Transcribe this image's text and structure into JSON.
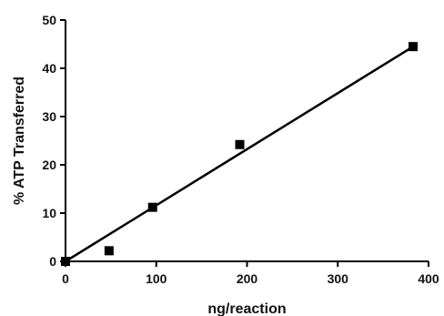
{
  "chart_data": {
    "type": "scatter",
    "title": "",
    "xlabel": "ng/reaction",
    "ylabel": "% ATP Transferred",
    "xlim": [
      0,
      400
    ],
    "ylim": [
      0,
      50
    ],
    "xticks": [
      "0",
      "100",
      "200",
      "300",
      "400"
    ],
    "yticks": [
      "0",
      "10",
      "20",
      "30",
      "40",
      "50"
    ],
    "grid": false,
    "legend": "none",
    "points": [
      {
        "x": 0,
        "y": 0
      },
      {
        "x": 48,
        "y": 2.2
      },
      {
        "x": 96,
        "y": 11.2
      },
      {
        "x": 192,
        "y": 24.2
      },
      {
        "x": 383,
        "y": 44.5
      }
    ],
    "fit_line": {
      "x": [
        0,
        383
      ],
      "y": [
        0,
        44.5
      ]
    },
    "colors": {
      "marker": "#000000",
      "line": "#000000",
      "axis": "#000000"
    }
  }
}
